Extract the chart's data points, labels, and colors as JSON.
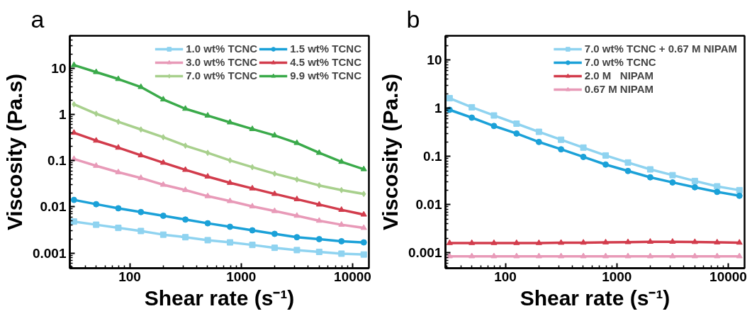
{
  "chart_data": [
    {
      "type": "line",
      "title": "a",
      "xlabel": "Shear rate (s⁻¹)",
      "ylabel": "Viscosity (Pa.s)",
      "log": "xy",
      "legend": "top right",
      "line_style": "solid",
      "x": [
        31.6,
        50,
        79,
        126,
        200,
        316,
        501,
        794,
        1259,
        1995,
        3162,
        5012,
        7943,
        12589
      ],
      "xlim": [
        29,
        14000
      ],
      "ylim": [
        0.00047,
        50
      ],
      "xticks": [
        100,
        1000,
        10000
      ],
      "yticks": [
        0.001,
        0.01,
        0.1,
        1,
        10
      ],
      "series": [
        {
          "name": "1.0 wt% TCNC",
          "color": "#8fd3f0",
          "marker": "square",
          "values": [
            0.0048,
            0.0041,
            0.0035,
            0.003,
            0.0025,
            0.0022,
            0.0019,
            0.0017,
            0.0015,
            0.0013,
            0.00116,
            0.00106,
            0.00097,
            0.00093
          ]
        },
        {
          "name": "1.5 wt% TCNC",
          "color": "#1ba1d8",
          "marker": "circle",
          "values": [
            0.0141,
            0.0114,
            0.0093,
            0.0077,
            0.0064,
            0.0053,
            0.0044,
            0.0037,
            0.0031,
            0.0026,
            0.0022,
            0.002,
            0.0018,
            0.0017
          ]
        },
        {
          "name": "3.0 wt% TCNC",
          "color": "#e89ab8",
          "marker": "triangle",
          "values": [
            0.108,
            0.077,
            0.056,
            0.042,
            0.03,
            0.023,
            0.017,
            0.0133,
            0.0102,
            0.0081,
            0.0064,
            0.005,
            0.0041,
            0.0035
          ]
        },
        {
          "name": "4.5 wt% TCNC",
          "color": "#d23c4c",
          "marker": "triangle",
          "values": [
            0.4,
            0.27,
            0.19,
            0.13,
            0.09,
            0.063,
            0.045,
            0.033,
            0.025,
            0.019,
            0.0146,
            0.0112,
            0.0086,
            0.0068
          ]
        },
        {
          "name": "7.0 wt% TCNC",
          "color": "#a8d08d",
          "marker": "diamond",
          "values": [
            1.65,
            1.03,
            0.69,
            0.47,
            0.32,
            0.21,
            0.147,
            0.101,
            0.072,
            0.052,
            0.039,
            0.029,
            0.023,
            0.019
          ]
        },
        {
          "name": "9.9 wt% TCNC",
          "color": "#3aaa4a",
          "marker": "triangle",
          "values": [
            11.6,
            8.2,
            5.8,
            3.9,
            2.1,
            1.32,
            0.94,
            0.67,
            0.48,
            0.35,
            0.24,
            0.147,
            0.094,
            0.065
          ]
        }
      ]
    },
    {
      "type": "line",
      "title": "b",
      "xlabel": "Shear rate (s⁻¹)",
      "ylabel": "Viscosity (Pa.s)",
      "log": "xy",
      "legend": "top right",
      "line_style": "solid",
      "x": [
        31.6,
        50,
        79,
        126,
        200,
        316,
        501,
        794,
        1259,
        1995,
        3162,
        5012,
        7943,
        12589
      ],
      "xlim": [
        29,
        14000
      ],
      "ylim": [
        0.00048,
        32
      ],
      "xticks": [
        100,
        1000,
        10000
      ],
      "yticks": [
        0.001,
        0.01,
        0.1,
        1,
        10
      ],
      "series": [
        {
          "name": "7.0 wt% TCNC + 0.67 M NIPAM",
          "color": "#8fd3f0",
          "marker": "square",
          "values": [
            1.62,
            1.05,
            0.71,
            0.48,
            0.325,
            0.223,
            0.153,
            0.105,
            0.075,
            0.054,
            0.041,
            0.031,
            0.024,
            0.02
          ]
        },
        {
          "name": "7.0 wt% TCNC",
          "color": "#1ba1d8",
          "marker": "circle",
          "values": [
            0.93,
            0.64,
            0.43,
            0.3,
            0.2,
            0.141,
            0.098,
            0.068,
            0.05,
            0.037,
            0.029,
            0.023,
            0.0184,
            0.0153
          ]
        },
        {
          "name": "2.0 M   NIPAM",
          "color": "#d23c4c",
          "marker": "triangle",
          "values": [
            0.0016,
            0.0016,
            0.0016,
            0.0016,
            0.0016,
            0.00162,
            0.00163,
            0.00165,
            0.00167,
            0.0017,
            0.0017,
            0.00168,
            0.00165,
            0.00163
          ]
        },
        {
          "name": "0.67 M NIPAM",
          "color": "#e89ab8",
          "marker": "triangle",
          "values": [
            0.00085,
            0.00085,
            0.00085,
            0.00085,
            0.00085,
            0.00085,
            0.00085,
            0.00085,
            0.00085,
            0.00085,
            0.00085,
            0.00085,
            0.00085,
            0.00085
          ]
        }
      ]
    }
  ]
}
